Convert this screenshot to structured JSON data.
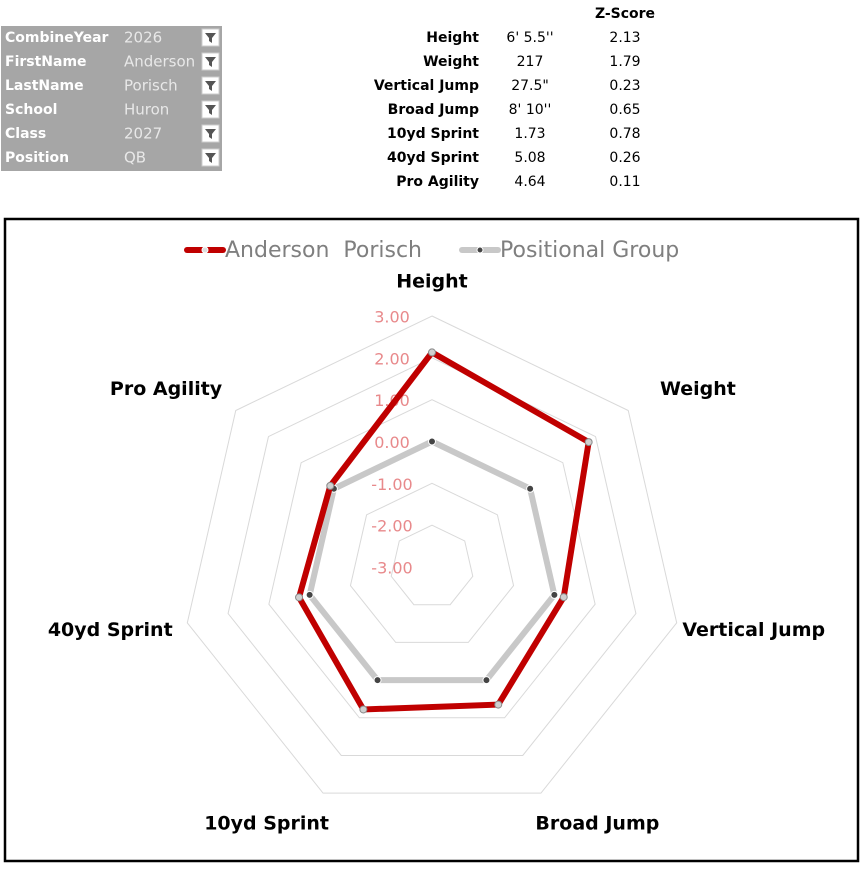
{
  "filters": [
    {
      "label": "CombineYear",
      "value": "2026"
    },
    {
      "label": "FirstName",
      "value": "Anderson"
    },
    {
      "label": "LastName",
      "value": "Porisch"
    },
    {
      "label": "School",
      "value": "Huron"
    },
    {
      "label": "Class",
      "value": "2027"
    },
    {
      "label": "Position",
      "value": "QB"
    }
  ],
  "table": {
    "header": "Z-Score",
    "rows": [
      [
        "Height",
        "6' 5.5''",
        2.13
      ],
      [
        "Weight",
        217,
        1.79
      ],
      [
        "Vertical Jump",
        "27.5\"",
        0.23
      ],
      [
        "Broad Jump",
        "8' 10''",
        0.65
      ],
      [
        "10yd Sprint",
        1.73,
        0.78
      ],
      [
        "40yd Sprint",
        5.08,
        0.26
      ],
      [
        "Pro Agility",
        4.64,
        0.11
      ]
    ]
  },
  "chart_data": {
    "type": "radar",
    "categories": [
      "Height",
      "Weight",
      "Vertical Jump",
      "Broad Jump",
      "10yd Sprint",
      "40yd Sprint",
      "Pro Agility"
    ],
    "series": [
      {
        "name": "Anderson  Porisch",
        "color": "#c00000",
        "values": [
          2.13,
          1.79,
          0.23,
          0.65,
          0.78,
          0.26,
          0.11
        ]
      },
      {
        "name": "Positional Group",
        "color": "#c8c8c8",
        "values": [
          0,
          0,
          0,
          0,
          0,
          0,
          0
        ]
      }
    ],
    "ylim": [
      -3,
      3
    ],
    "yticks": [
      {
        "value": -3,
        "label": "-3.00"
      },
      {
        "value": -2,
        "label": "-2.00"
      },
      {
        "value": -1,
        "label": "-1.00"
      },
      {
        "value": 0,
        "label": "0.00"
      },
      {
        "value": 1,
        "label": "1.00"
      },
      {
        "value": 2,
        "label": "2.00"
      },
      {
        "value": 3,
        "label": "3.00"
      }
    ],
    "grid": true,
    "legend": "top"
  }
}
